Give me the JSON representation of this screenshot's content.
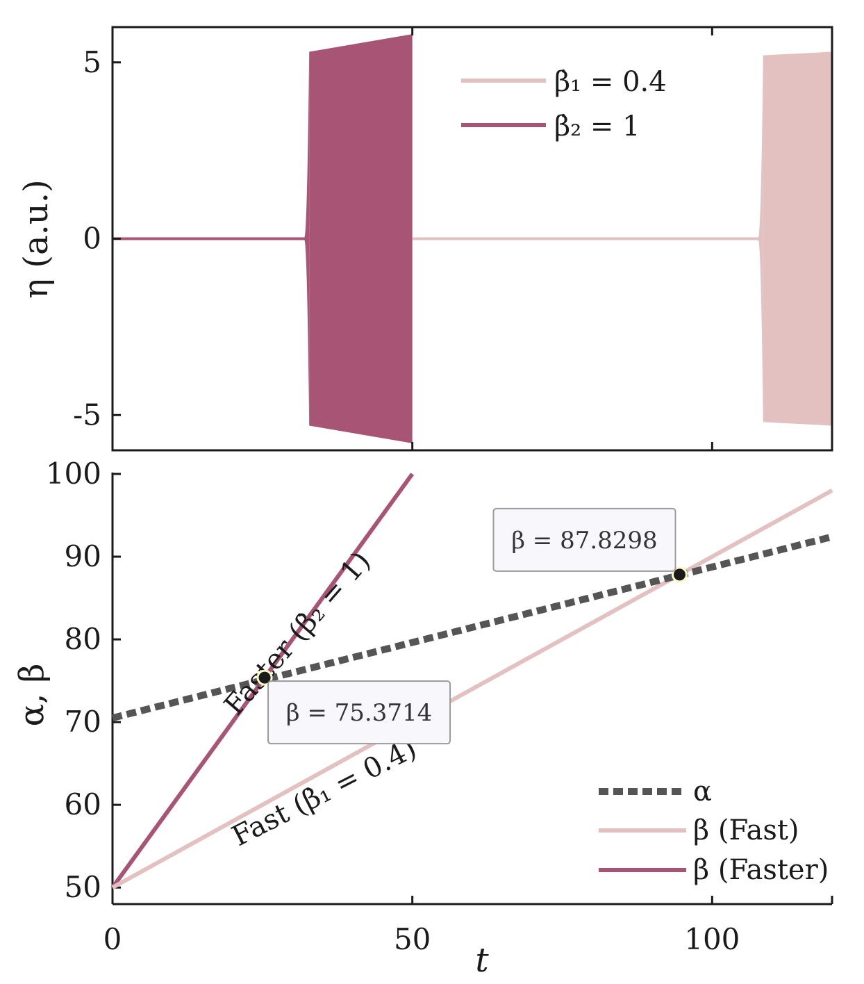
{
  "colors": {
    "fast": "#e2c1c0",
    "faster": "#a85575",
    "alpha": "#555555",
    "axis": "#1a1a1a",
    "tip_bg": "#f7f7fc",
    "tip_border": "#9a9a9a",
    "marker": "#1a1a1a",
    "marker_ring": "#fffbc8"
  },
  "chart_data": [
    {
      "type": "area",
      "panel": "top",
      "ylabel": "η (a.u.)",
      "xlim": [
        0,
        120
      ],
      "ylim": [
        -6,
        6
      ],
      "yticks": [
        5,
        0,
        -5
      ],
      "ytick_labels": [
        "5",
        "0",
        "-5"
      ],
      "xticks": [
        0,
        50,
        100
      ],
      "legend_position": "top-center",
      "legend": [
        "β̇₁ = 0.4",
        "β̇₂ = 1"
      ],
      "series": [
        {
          "name": "β̇₂ = 1",
          "color_key": "faster",
          "t_start": 0,
          "t_end": 50,
          "t_onset": 32.8,
          "amplitude_start": 5.3,
          "amplitude_end": 5.8,
          "amplitude_before_onset": 0.05
        },
        {
          "name": "β̇₁ = 0.4",
          "color_key": "fast",
          "t_start": 50,
          "t_end": 120,
          "t_onset": 108.5,
          "amplitude_start": 5.2,
          "amplitude_end": 5.3,
          "amplitude_before_onset": 0.05
        }
      ]
    },
    {
      "type": "line",
      "panel": "bottom",
      "xlabel": "t",
      "ylabel": "α, β",
      "xlim": [
        0,
        120
      ],
      "ylim": [
        48,
        100
      ],
      "xticks": [
        0,
        50,
        100
      ],
      "xtick_labels": [
        "0",
        "50",
        "100"
      ],
      "yticks": [
        50,
        60,
        70,
        80,
        90,
        100
      ],
      "ytick_labels": [
        "50",
        "60",
        "70",
        "80",
        "90",
        "100"
      ],
      "legend_position": "bottom-right",
      "series": [
        {
          "name": "α",
          "color_key": "alpha",
          "style": "dotted",
          "x": [
            0,
            120
          ],
          "y": [
            70.5,
            92.4
          ]
        },
        {
          "name": "β (Fast)",
          "color_key": "fast",
          "style": "solid",
          "x": [
            0,
            120
          ],
          "y": [
            50,
            98
          ]
        },
        {
          "name": "β (Faster)",
          "color_key": "faster",
          "style": "solid",
          "x": [
            0,
            50
          ],
          "y": [
            50,
            100
          ]
        }
      ],
      "annotations": [
        {
          "text": "Faster (β̇₂ = 1)",
          "x": 32,
          "y": 80,
          "angle_deg": -49
        },
        {
          "text": "Fast (β̇₁ = 0.4)",
          "x": 36,
          "y": 60.5,
          "angle_deg": -27
        }
      ],
      "datatips": [
        {
          "text": "β = 75.3714",
          "x": 25.3714,
          "y": 75.3714
        },
        {
          "text": "β = 87.8298",
          "x": 94.5745,
          "y": 87.8298
        }
      ]
    }
  ]
}
